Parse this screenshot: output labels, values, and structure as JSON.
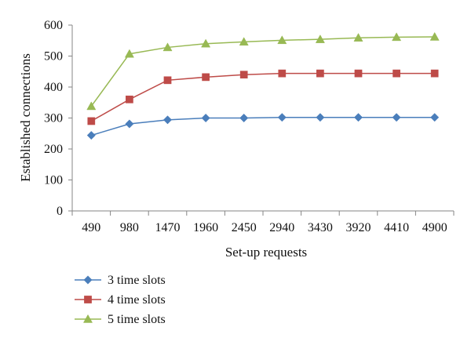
{
  "chart_data": {
    "type": "line",
    "xlabel": "Set-up requests",
    "ylabel": "Established connections",
    "categories": [
      "490",
      "980",
      "1470",
      "1960",
      "2450",
      "2940",
      "3430",
      "3920",
      "4410",
      "4900"
    ],
    "ylim": [
      0,
      600
    ],
    "yticks": [
      "0",
      "100",
      "200",
      "300",
      "400",
      "500",
      "600"
    ],
    "grid": false,
    "legend_position": "bottom-left",
    "series": [
      {
        "name": "3 time slots",
        "color": "#4a7ebb",
        "marker": "diamond",
        "values": [
          244,
          281,
          294,
          300,
          300,
          302,
          302,
          302,
          302,
          302
        ]
      },
      {
        "name": "4 time slots",
        "color": "#be4b48",
        "marker": "square",
        "values": [
          290,
          360,
          422,
          432,
          440,
          444,
          444,
          444,
          444,
          444
        ]
      },
      {
        "name": "5 time slots",
        "color": "#98b954",
        "marker": "triangle",
        "values": [
          338,
          507,
          528,
          540,
          546,
          551,
          554,
          559,
          561,
          562
        ]
      }
    ]
  }
}
